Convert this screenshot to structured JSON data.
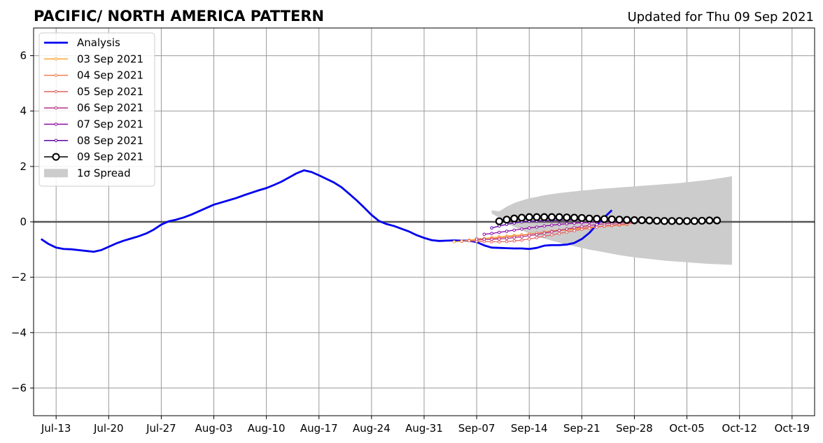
{
  "chart_data": {
    "type": "line",
    "title": "PACIFIC/ NORTH AMERICA PATTERN",
    "subtitle": "Updated for Thu 09 Sep 2021",
    "xlabel": "",
    "ylabel": "",
    "xlim": [
      "2021-07-10",
      "2021-10-22"
    ],
    "ylim": [
      -7,
      7
    ],
    "x_ticks": [
      "Jul-13",
      "Jul-20",
      "Jul-27",
      "Aug-03",
      "Aug-10",
      "Aug-17",
      "Aug-24",
      "Aug-31",
      "Sep-07",
      "Sep-14",
      "Sep-21",
      "Sep-28",
      "Oct-05",
      "Oct-12",
      "Oct-19"
    ],
    "x_tick_dates": [
      "2021-07-13",
      "2021-07-20",
      "2021-07-27",
      "2021-08-03",
      "2021-08-10",
      "2021-08-17",
      "2021-08-24",
      "2021-08-31",
      "2021-09-07",
      "2021-09-14",
      "2021-09-21",
      "2021-09-28",
      "2021-10-05",
      "2021-10-12",
      "2021-10-19"
    ],
    "y_ticks": [
      6,
      4,
      2,
      0,
      -2,
      -4,
      -6
    ],
    "y_tick_labels": [
      "6",
      "4",
      "2",
      "0",
      "−2",
      "−4",
      "−6"
    ],
    "grid": true,
    "legend_position": "top-left",
    "analysis": {
      "name": "Analysis",
      "color": "#0000ee",
      "start": "2021-07-11",
      "values": [
        -0.62,
        -0.8,
        -0.93,
        -0.98,
        -0.99,
        -1.02,
        -1.05,
        -1.08,
        -1.02,
        -0.9,
        -0.78,
        -0.68,
        -0.6,
        -0.52,
        -0.42,
        -0.28,
        -0.1,
        0.02,
        0.08,
        0.16,
        0.26,
        0.38,
        0.5,
        0.62,
        0.7,
        0.78,
        0.86,
        0.96,
        1.05,
        1.14,
        1.22,
        1.33,
        1.45,
        1.6,
        1.75,
        1.86,
        1.8,
        1.68,
        1.55,
        1.42,
        1.25,
        1.02,
        0.78,
        0.52,
        0.25,
        0.03,
        -0.08,
        -0.15,
        -0.25,
        -0.35,
        -0.48,
        -0.58,
        -0.66,
        -0.69,
        -0.68,
        -0.67,
        -0.68,
        -0.68,
        -0.73,
        -0.85,
        -0.93,
        -0.94,
        -0.95,
        -0.96,
        -0.96,
        -0.98,
        -0.94,
        -0.86,
        -0.84,
        -0.84,
        -0.82,
        -0.76,
        -0.62,
        -0.4,
        -0.1,
        0.16,
        0.42
      ]
    },
    "spread": {
      "name": "1σ Spread",
      "color": "#cccccc",
      "start": "2021-09-09",
      "upper": [
        0.42,
        0.38,
        0.55,
        0.68,
        0.77,
        0.85,
        0.9,
        0.96,
        1.0,
        1.04,
        1.07,
        1.1,
        1.13,
        1.15,
        1.18,
        1.2,
        1.22,
        1.24,
        1.26,
        1.28,
        1.3,
        1.32,
        1.34,
        1.36,
        1.38,
        1.4,
        1.43,
        1.46,
        1.49,
        1.52,
        1.56,
        1.6,
        1.65
      ],
      "lower": [
        0.3,
        0.15,
        -0.05,
        -0.18,
        -0.3,
        -0.42,
        -0.52,
        -0.6,
        -0.68,
        -0.75,
        -0.82,
        -0.88,
        -0.94,
        -1.0,
        -1.05,
        -1.1,
        -1.15,
        -1.2,
        -1.24,
        -1.28,
        -1.31,
        -1.34,
        -1.37,
        -1.4,
        -1.42,
        -1.44,
        -1.46,
        -1.48,
        -1.5,
        -1.52,
        -1.53,
        -1.54,
        -1.55
      ]
    },
    "series": [
      {
        "name": "03 Sep 2021",
        "color": "#fca636",
        "start": "2021-09-04",
        "values": [
          -0.72,
          -0.7,
          -0.66,
          -0.62,
          -0.6,
          -0.57,
          -0.54,
          -0.52,
          -0.49,
          -0.47,
          -0.44,
          -0.41,
          -0.38,
          -0.35,
          -0.32,
          -0.3,
          -0.27,
          -0.24,
          -0.21,
          -0.18,
          -0.15,
          -0.12,
          -0.1,
          -0.08
        ]
      },
      {
        "name": "04 Sep 2021",
        "color": "#f07f4f",
        "start": "2021-09-05",
        "values": [
          -0.7,
          -0.68,
          -0.66,
          -0.64,
          -0.61,
          -0.58,
          -0.55,
          -0.52,
          -0.49,
          -0.45,
          -0.41,
          -0.37,
          -0.33,
          -0.3,
          -0.27,
          -0.24,
          -0.22,
          -0.2,
          -0.18,
          -0.16,
          -0.14,
          -0.12,
          -0.1
        ]
      },
      {
        "name": "05 Sep 2021",
        "color": "#e16462",
        "start": "2021-09-06",
        "values": [
          -0.68,
          -0.7,
          -0.71,
          -0.72,
          -0.72,
          -0.71,
          -0.69,
          -0.66,
          -0.62,
          -0.57,
          -0.52,
          -0.47,
          -0.42,
          -0.37,
          -0.32,
          -0.27,
          -0.23,
          -0.19,
          -0.15,
          -0.12,
          -0.09,
          -0.07,
          -0.05
        ]
      },
      {
        "name": "06 Sep 2021",
        "color": "#b83289",
        "start": "2021-09-07",
        "values": [
          -0.62,
          -0.63,
          -0.63,
          -0.62,
          -0.6,
          -0.57,
          -0.54,
          -0.5,
          -0.46,
          -0.41,
          -0.36,
          -0.31,
          -0.26,
          -0.21,
          -0.17,
          -0.13,
          -0.1,
          -0.07,
          -0.05,
          -0.03,
          -0.02,
          -0.01,
          0.0
        ]
      },
      {
        "name": "07 Sep 2021",
        "color": "#8b0aa5",
        "start": "2021-09-08",
        "values": [
          -0.45,
          -0.42,
          -0.38,
          -0.34,
          -0.3,
          -0.26,
          -0.22,
          -0.19,
          -0.15,
          -0.12,
          -0.09,
          -0.07,
          -0.05,
          -0.03,
          -0.02,
          -0.01,
          0.0,
          0.01,
          0.02,
          0.03,
          0.04,
          0.05
        ]
      },
      {
        "name": "08 Sep 2021",
        "color": "#5c01a6",
        "start": "2021-09-09",
        "values": [
          -0.22,
          -0.15,
          -0.09,
          -0.04,
          0.0,
          0.02,
          0.03,
          0.04,
          0.05,
          0.06,
          0.06,
          0.07,
          0.07,
          0.08,
          0.08,
          0.08,
          0.09,
          0.09
        ]
      },
      {
        "name": "09 Sep 2021",
        "color": "#000000",
        "start": "2021-09-10",
        "values": [
          0.02,
          0.08,
          0.12,
          0.15,
          0.17,
          0.17,
          0.17,
          0.17,
          0.17,
          0.16,
          0.15,
          0.14,
          0.12,
          0.11,
          0.1,
          0.09,
          0.08,
          0.07,
          0.06,
          0.06,
          0.05,
          0.04,
          0.03,
          0.03,
          0.03,
          0.03,
          0.03,
          0.04,
          0.05,
          0.05
        ]
      }
    ]
  }
}
